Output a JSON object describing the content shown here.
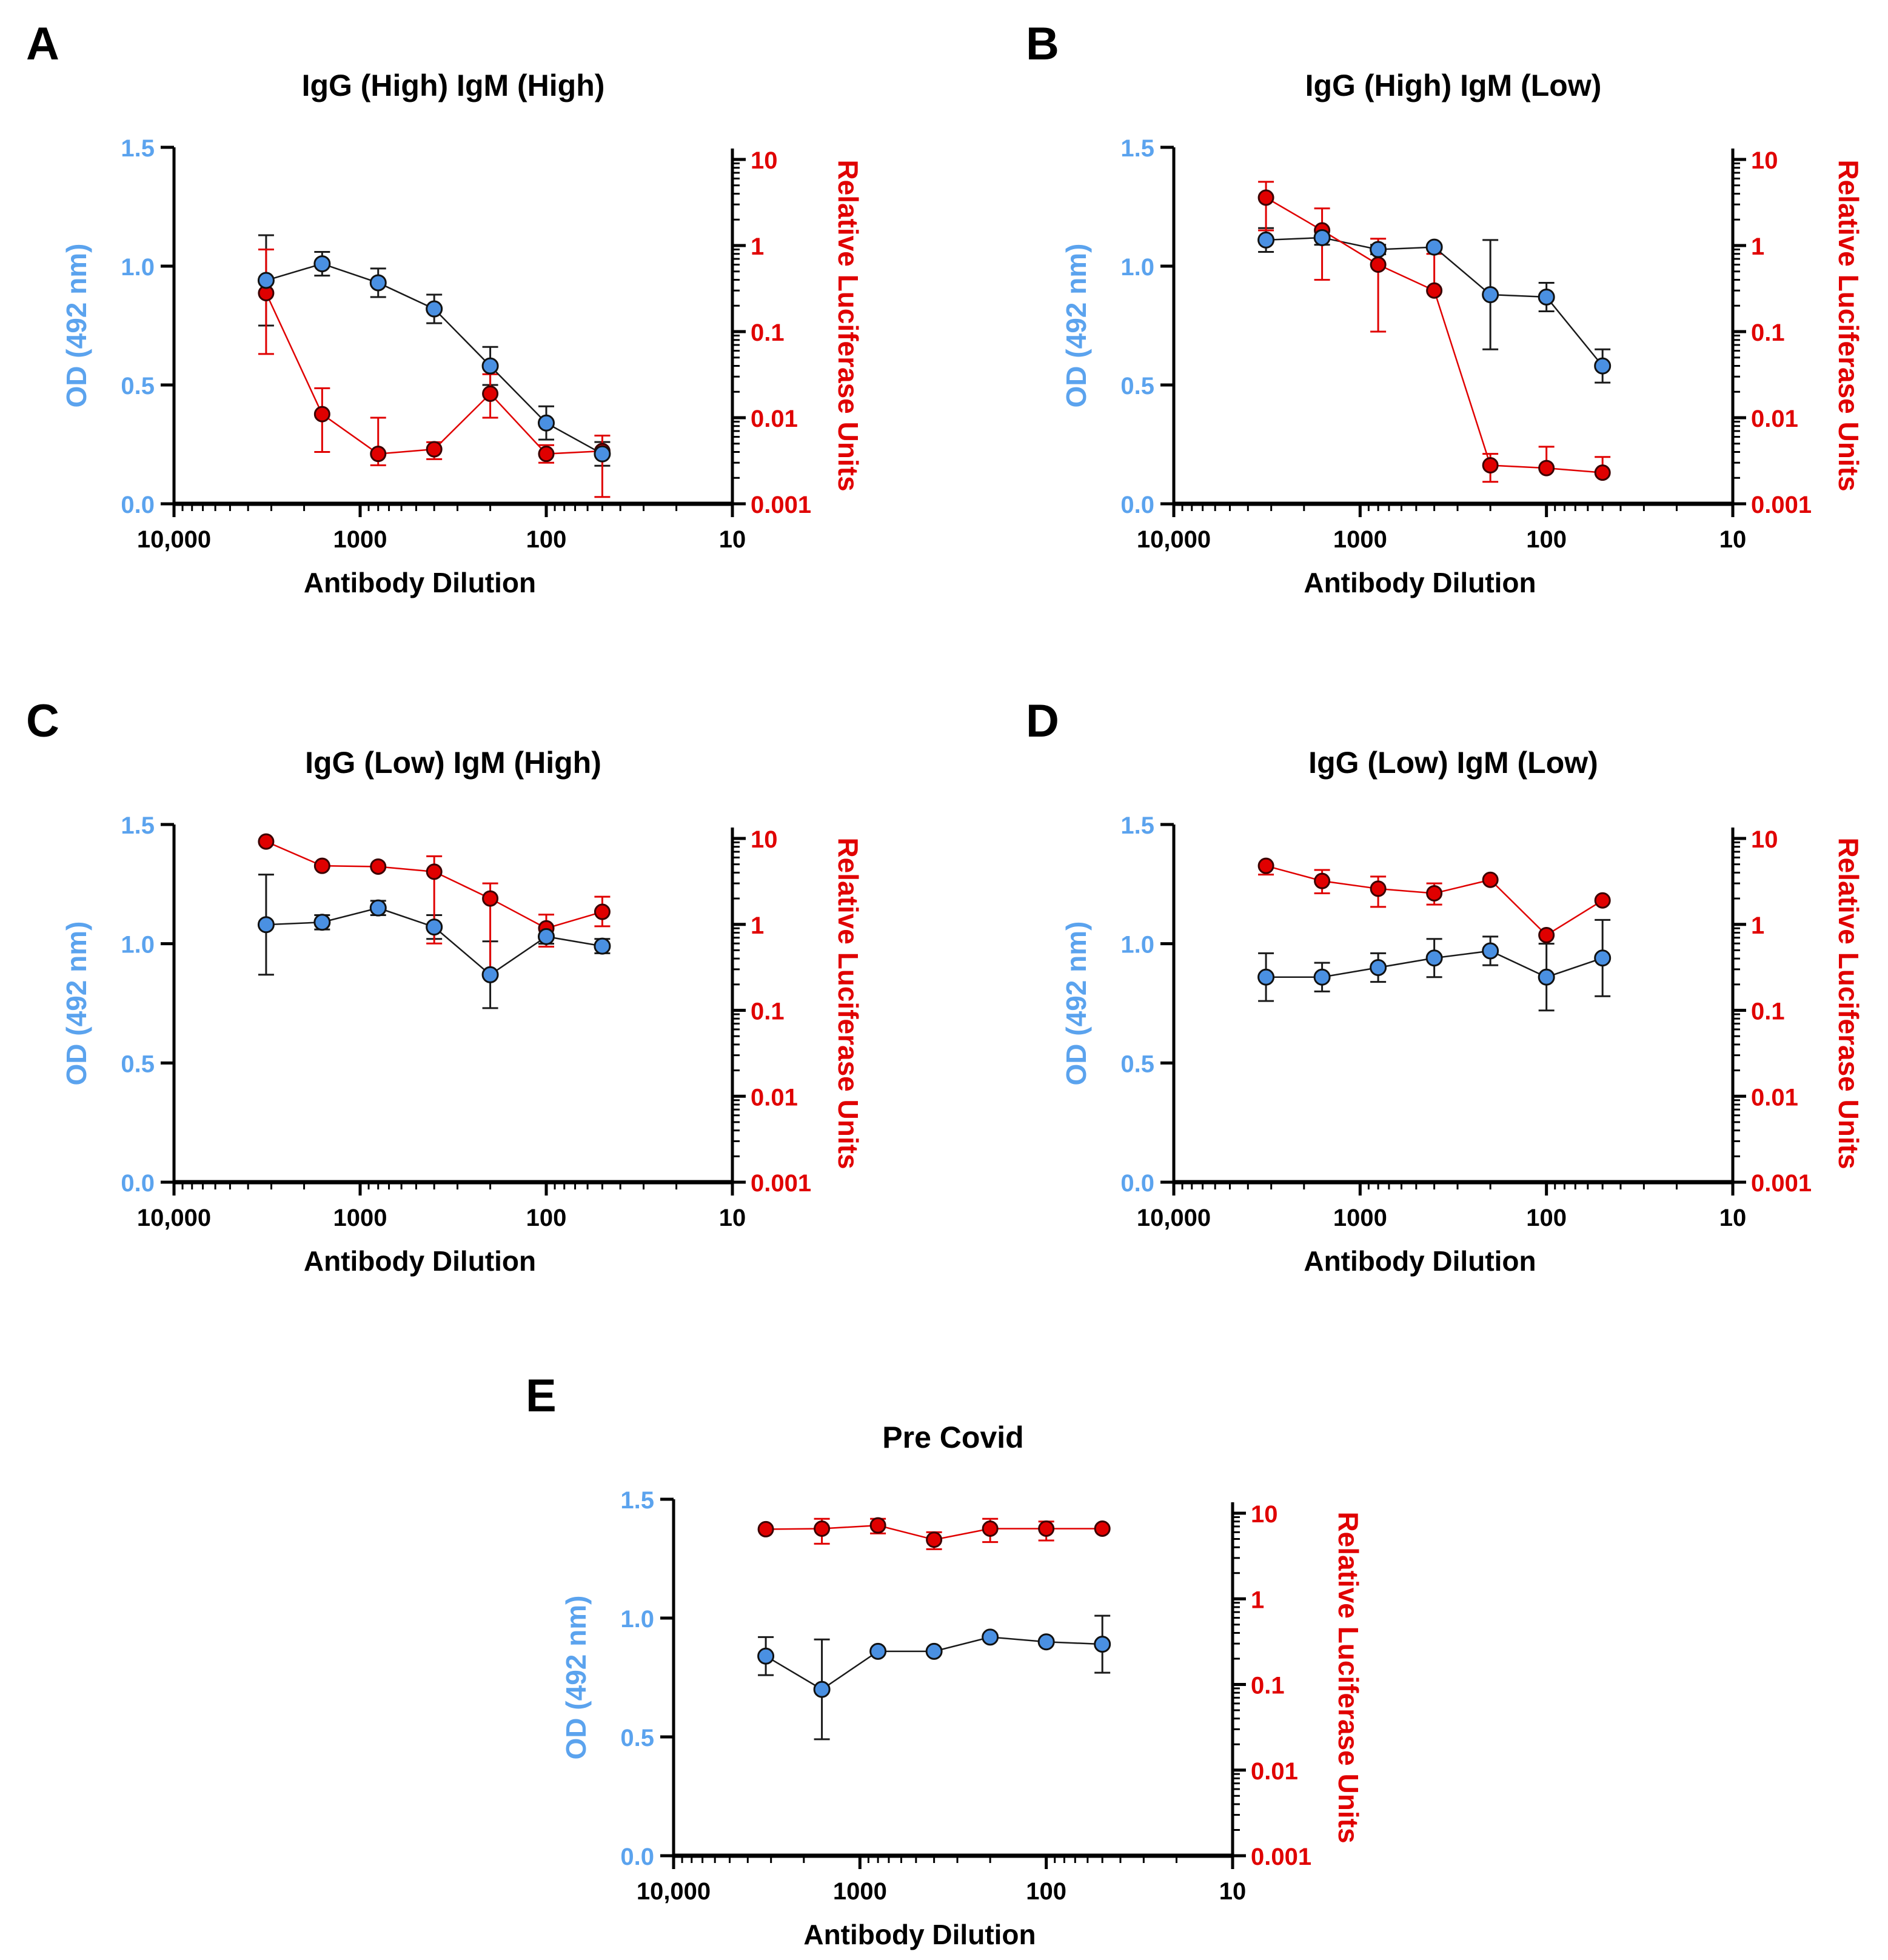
{
  "figure": {
    "colors": {
      "od": "#5BA3EE",
      "luciferase": "#E00000",
      "od_marker": "#4A90E2",
      "od_line": "#1A1A1A",
      "axis": "#000000"
    }
  },
  "chart_data": [
    {
      "panel": "A",
      "type": "line",
      "title": "IgG (High) IgM (High)",
      "xlabel": "Antibody Dilution",
      "ylabel": "OD (492 nm)",
      "y2label": "Relative Luciferase Units",
      "x_scale": "log",
      "x_reversed": true,
      "xlim": [
        10000,
        10
      ],
      "ylim": [
        0,
        1.5
      ],
      "y2_scale": "log",
      "y2lim": [
        0.001,
        15
      ],
      "x_ticks": [
        10000,
        1000,
        100,
        10
      ],
      "x_tick_labels": [
        "10,000",
        "1000",
        "100",
        "10"
      ],
      "y_ticks": [
        0,
        0.5,
        1,
        1.5
      ],
      "y_tick_labels": [
        "0.0",
        "0.5",
        "1.0",
        "1.5"
      ],
      "y2_ticks": [
        0.001,
        0.01,
        0.1,
        1,
        10
      ],
      "y2_tick_labels": [
        "0.001",
        "0.01",
        "0.1",
        "1",
        "10"
      ],
      "x": [
        3200,
        1600,
        800,
        400,
        200,
        100,
        50
      ],
      "series": [
        {
          "name": "OD (492 nm)",
          "axis": "left",
          "values": [
            0.94,
            1.01,
            0.93,
            0.82,
            0.58,
            0.34,
            0.21
          ],
          "errors": [
            0.19,
            0.05,
            0.06,
            0.06,
            0.08,
            0.07,
            0.05
          ]
        },
        {
          "name": "Relative Luciferase Units",
          "axis": "right",
          "values": [
            0.28,
            0.011,
            0.0038,
            0.0043,
            0.019,
            0.0038,
            0.0041
          ],
          "err_low": [
            0.055,
            0.004,
            0.0028,
            0.0033,
            0.01,
            0.003,
            0.0012
          ],
          "err_high": [
            0.9,
            0.022,
            0.01,
            0.0052,
            0.032,
            0.0048,
            0.0062
          ]
        }
      ]
    },
    {
      "panel": "B",
      "type": "line",
      "title": "IgG (High) IgM (Low)",
      "xlabel": "Antibody Dilution",
      "ylabel": "OD (492 nm)",
      "y2label": "Relative Luciferase Units",
      "x_scale": "log",
      "x_reversed": true,
      "xlim": [
        10000,
        10
      ],
      "ylim": [
        0,
        1.5
      ],
      "y2_scale": "log",
      "y2lim": [
        0.001,
        15
      ],
      "x_ticks": [
        10000,
        1000,
        100,
        10
      ],
      "x_tick_labels": [
        "10,000",
        "1000",
        "100",
        "10"
      ],
      "y_ticks": [
        0,
        0.5,
        1,
        1.5
      ],
      "y_tick_labels": [
        "0.0",
        "0.5",
        "1.0",
        "1.5"
      ],
      "y2_ticks": [
        0.001,
        0.01,
        0.1,
        1,
        10
      ],
      "y2_tick_labels": [
        "0.001",
        "0.01",
        "0.1",
        "1",
        "10"
      ],
      "x": [
        3200,
        1600,
        800,
        400,
        200,
        100,
        50
      ],
      "series": [
        {
          "name": "OD (492 nm)",
          "axis": "left",
          "values": [
            1.11,
            1.12,
            1.07,
            1.08,
            0.88,
            0.87,
            0.58
          ],
          "errors": [
            0.05,
            0.03,
            0.02,
            0.01,
            0.23,
            0.06,
            0.07
          ]
        },
        {
          "name": "Relative Luciferase Units",
          "axis": "right",
          "values": [
            3.6,
            1.5,
            0.6,
            0.3,
            0.0028,
            0.0026,
            0.0023
          ],
          "err_low": [
            1.5,
            0.4,
            0.1,
            0.3,
            0.0018,
            0.0026,
            0.0023
          ],
          "err_high": [
            5.5,
            2.7,
            1.2,
            0.8,
            0.0038,
            0.0046,
            0.0035
          ]
        }
      ]
    },
    {
      "panel": "C",
      "type": "line",
      "title": "IgG (Low) IgM (High)",
      "xlabel": "Antibody Dilution",
      "ylabel": "OD (492 nm)",
      "y2label": "Relative Luciferase Units",
      "x_scale": "log",
      "x_reversed": true,
      "xlim": [
        10000,
        10
      ],
      "ylim": [
        0,
        1.5
      ],
      "y2_scale": "log",
      "y2lim": [
        0.001,
        15
      ],
      "x_ticks": [
        10000,
        1000,
        100,
        10
      ],
      "x_tick_labels": [
        "10,000",
        "1000",
        "100",
        "10"
      ],
      "y_ticks": [
        0,
        0.5,
        1,
        1.5
      ],
      "y_tick_labels": [
        "0.0",
        "0.5",
        "1.0",
        "1.5"
      ],
      "y2_ticks": [
        0.001,
        0.01,
        0.1,
        1,
        10
      ],
      "y2_tick_labels": [
        "0.001",
        "0.01",
        "0.1",
        "1",
        "10"
      ],
      "x": [
        3200,
        1600,
        800,
        400,
        200,
        100,
        50
      ],
      "series": [
        {
          "name": "OD (492 nm)",
          "axis": "left",
          "values": [
            1.08,
            1.09,
            1.15,
            1.07,
            0.87,
            1.03,
            0.99
          ],
          "errors": [
            0.21,
            0.03,
            0.03,
            0.05,
            0.14,
            0.03,
            0.03
          ]
        },
        {
          "name": "Relative Luciferase Units",
          "axis": "right",
          "values": [
            9.2,
            4.8,
            4.7,
            4.1,
            2.0,
            0.9,
            1.4
          ],
          "err_low": [
            9.2,
            4.8,
            4.7,
            0.6,
            0.26,
            0.55,
            0.95
          ],
          "err_high": [
            9.2,
            4.8,
            4.7,
            6.2,
            3.0,
            1.3,
            2.1
          ]
        }
      ]
    },
    {
      "panel": "D",
      "type": "line",
      "title": "IgG (Low) IgM (Low)",
      "xlabel": "Antibody Dilution",
      "ylabel": "OD (492 nm)",
      "y2label": "Relative Luciferase Units",
      "x_scale": "log",
      "x_reversed": true,
      "xlim": [
        10000,
        10
      ],
      "ylim": [
        0,
        1.5
      ],
      "y2_scale": "log",
      "y2lim": [
        0.001,
        15
      ],
      "x_ticks": [
        10000,
        1000,
        100,
        10
      ],
      "x_tick_labels": [
        "10,000",
        "1000",
        "100",
        "10"
      ],
      "y_ticks": [
        0,
        0.5,
        1,
        1.5
      ],
      "y_tick_labels": [
        "0.0",
        "0.5",
        "1.0",
        "1.5"
      ],
      "y2_ticks": [
        0.001,
        0.01,
        0.1,
        1,
        10
      ],
      "y2_tick_labels": [
        "0.001",
        "0.01",
        "0.1",
        "1",
        "10"
      ],
      "x": [
        3200,
        1600,
        800,
        400,
        200,
        100,
        50
      ],
      "series": [
        {
          "name": "OD (492 nm)",
          "axis": "left",
          "values": [
            0.86,
            0.86,
            0.9,
            0.94,
            0.97,
            0.86,
            0.94
          ],
          "errors": [
            0.1,
            0.06,
            0.06,
            0.08,
            0.06,
            0.14,
            0.16
          ]
        },
        {
          "name": "Relative Luciferase Units",
          "axis": "right",
          "values": [
            4.8,
            3.2,
            2.6,
            2.3,
            3.3,
            0.75,
            1.9
          ],
          "err_low": [
            3.8,
            2.3,
            1.6,
            1.7,
            3.3,
            0.75,
            1.9
          ],
          "err_high": [
            4.8,
            4.3,
            3.6,
            3.0,
            3.3,
            0.75,
            1.9
          ]
        }
      ]
    },
    {
      "panel": "E",
      "type": "line",
      "title": "Pre Covid",
      "xlabel": "Antibody Dilution",
      "ylabel": "OD (492 nm)",
      "y2label": "Relative Luciferase Units",
      "x_scale": "log",
      "x_reversed": true,
      "xlim": [
        10000,
        10
      ],
      "ylim": [
        0,
        1.5
      ],
      "y2_scale": "log",
      "y2lim": [
        0.001,
        15
      ],
      "x_ticks": [
        10000,
        1000,
        100,
        10
      ],
      "x_tick_labels": [
        "10,000",
        "1000",
        "100",
        "10"
      ],
      "y_ticks": [
        0,
        0.5,
        1,
        1.5
      ],
      "y_tick_labels": [
        "0.0",
        "0.5",
        "1.0",
        "1.5"
      ],
      "y2_ticks": [
        0.001,
        0.01,
        0.1,
        1,
        10
      ],
      "y2_tick_labels": [
        "0.001",
        "0.01",
        "0.1",
        "1",
        "10"
      ],
      "x": [
        3200,
        1600,
        800,
        400,
        200,
        100,
        50
      ],
      "series": [
        {
          "name": "OD (492 nm)",
          "axis": "left",
          "values": [
            0.84,
            0.7,
            0.86,
            0.86,
            0.92,
            0.9,
            0.89
          ],
          "errors": [
            0.08,
            0.21,
            0.01,
            0.01,
            0.01,
            0.01,
            0.12
          ]
        },
        {
          "name": "Relative Luciferase Units",
          "axis": "right",
          "values": [
            6.5,
            6.6,
            7.2,
            4.9,
            6.6,
            6.6,
            6.6
          ],
          "err_low": [
            6.5,
            4.4,
            5.8,
            3.8,
            4.6,
            4.8,
            6.6
          ],
          "err_high": [
            6.5,
            8.6,
            8.6,
            6.0,
            8.6,
            8.0,
            6.6
          ]
        }
      ]
    }
  ]
}
